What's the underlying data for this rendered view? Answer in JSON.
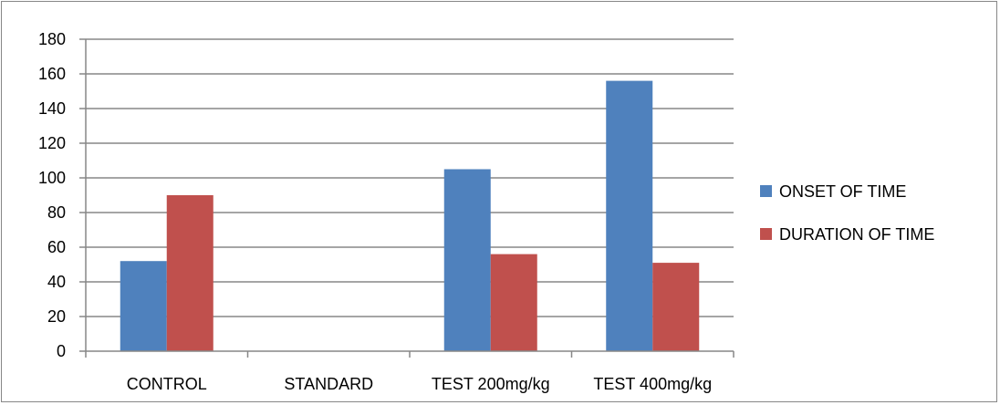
{
  "chart_data": {
    "type": "bar",
    "categories": [
      "CONTROL",
      "STANDARD",
      "TEST 200mg/kg",
      "TEST 400mg/kg"
    ],
    "series": [
      {
        "name": "ONSET OF TIME",
        "values": [
          52,
          0,
          105,
          156
        ],
        "color": "#4F81BD"
      },
      {
        "name": "DURATION OF TIME",
        "values": [
          90,
          0,
          56,
          51
        ],
        "color": "#C0504D"
      }
    ],
    "title": "",
    "xlabel": "",
    "ylabel": "",
    "ylim": [
      0,
      180
    ],
    "yticks": [
      0,
      20,
      40,
      60,
      80,
      100,
      120,
      140,
      160,
      180
    ],
    "grid": true,
    "legend_position": "right"
  }
}
